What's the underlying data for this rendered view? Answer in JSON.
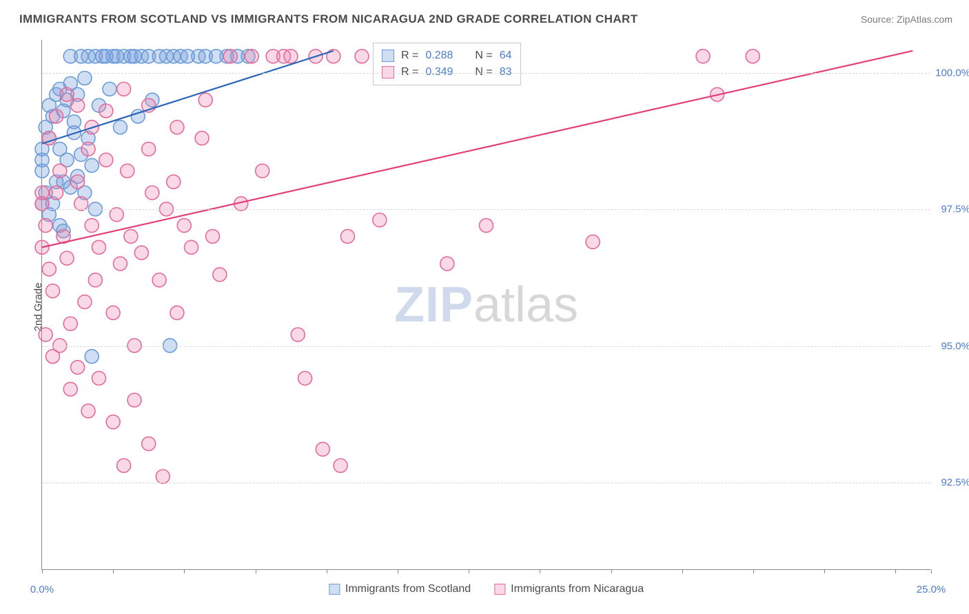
{
  "title": "IMMIGRANTS FROM SCOTLAND VS IMMIGRANTS FROM NICARAGUA 2ND GRADE CORRELATION CHART",
  "source_label": "Source: ",
  "source_value": "ZipAtlas.com",
  "y_axis_label": "2nd Grade",
  "watermark_part1": "ZIP",
  "watermark_part2": "atlas",
  "chart": {
    "type": "scatter",
    "background_color": "#ffffff",
    "grid_color": "#d8d8d8",
    "axis_color": "#888888",
    "xlim": [
      0,
      25
    ],
    "ylim": [
      90.9,
      100.6
    ],
    "x_tick_positions": [
      0,
      2.0,
      4.0,
      6.0,
      8.0,
      10.0,
      12.0,
      14.0,
      16.0,
      18.0,
      20.0,
      22.0,
      24.0,
      25.0
    ],
    "x_tick_labels": {
      "0": "0.0%",
      "25": "25.0%"
    },
    "y_grid_positions": [
      92.5,
      95.0,
      97.5,
      100.0
    ],
    "y_tick_labels": [
      "92.5%",
      "95.0%",
      "97.5%",
      "100.0%"
    ],
    "marker_radius": 10,
    "marker_stroke_width": 1.6,
    "trend_line_width": 2.2,
    "title_fontsize": 17,
    "label_fontsize": 15,
    "series": [
      {
        "key": "scotland",
        "name": "Immigrants from Scotland",
        "fill_color": "rgba(120,160,220,0.35)",
        "stroke_color": "#6a9bd8",
        "line_color": "#2a64b8",
        "R": "0.288",
        "N": "64",
        "trend": {
          "x1": 0.0,
          "y1": 98.7,
          "x2": 8.2,
          "y2": 100.4
        },
        "points": [
          [
            0.0,
            98.6
          ],
          [
            0.0,
            98.4
          ],
          [
            0.0,
            98.2
          ],
          [
            0.1,
            97.8
          ],
          [
            0.1,
            99.0
          ],
          [
            0.2,
            98.8
          ],
          [
            0.2,
            99.4
          ],
          [
            0.3,
            99.2
          ],
          [
            0.4,
            99.6
          ],
          [
            0.5,
            98.6
          ],
          [
            0.5,
            99.7
          ],
          [
            0.6,
            98.0
          ],
          [
            0.6,
            99.3
          ],
          [
            0.7,
            99.5
          ],
          [
            0.8,
            99.8
          ],
          [
            0.8,
            100.3
          ],
          [
            0.9,
            99.1
          ],
          [
            1.0,
            99.6
          ],
          [
            1.1,
            100.3
          ],
          [
            1.2,
            99.9
          ],
          [
            1.3,
            100.3
          ],
          [
            1.4,
            98.3
          ],
          [
            1.5,
            100.3
          ],
          [
            1.6,
            99.4
          ],
          [
            1.7,
            100.3
          ],
          [
            1.8,
            100.3
          ],
          [
            1.9,
            99.7
          ],
          [
            2.0,
            100.3
          ],
          [
            2.1,
            100.3
          ],
          [
            2.2,
            99.0
          ],
          [
            2.3,
            100.3
          ],
          [
            2.5,
            100.3
          ],
          [
            2.6,
            100.3
          ],
          [
            2.7,
            99.2
          ],
          [
            2.8,
            100.3
          ],
          [
            3.0,
            100.3
          ],
          [
            3.1,
            99.5
          ],
          [
            3.3,
            100.3
          ],
          [
            3.5,
            100.3
          ],
          [
            3.7,
            100.3
          ],
          [
            3.9,
            100.3
          ],
          [
            4.1,
            100.3
          ],
          [
            4.4,
            100.3
          ],
          [
            4.6,
            100.3
          ],
          [
            4.9,
            100.3
          ],
          [
            5.2,
            100.3
          ],
          [
            5.5,
            100.3
          ],
          [
            5.8,
            100.3
          ],
          [
            1.4,
            94.8
          ],
          [
            1.5,
            97.5
          ],
          [
            0.3,
            97.6
          ],
          [
            0.4,
            98.0
          ],
          [
            0.2,
            97.4
          ],
          [
            0.5,
            97.2
          ],
          [
            0.7,
            98.4
          ],
          [
            0.9,
            98.9
          ],
          [
            1.1,
            98.5
          ],
          [
            1.3,
            98.8
          ],
          [
            0.6,
            97.1
          ],
          [
            0.0,
            97.6
          ],
          [
            0.8,
            97.9
          ],
          [
            1.0,
            98.1
          ],
          [
            3.6,
            95.0
          ],
          [
            1.2,
            97.8
          ]
        ]
      },
      {
        "key": "nicaragua",
        "name": "Immigrants from Nicaragua",
        "fill_color": "rgba(235,130,170,0.30)",
        "stroke_color": "#e46a9a",
        "line_color": "#e43d78",
        "R": "0.349",
        "N": "83",
        "trend": {
          "x1": 0.0,
          "y1": 96.8,
          "x2": 24.5,
          "y2": 100.4
        },
        "points": [
          [
            0.0,
            97.6
          ],
          [
            0.0,
            96.8
          ],
          [
            0.1,
            97.2
          ],
          [
            0.2,
            96.4
          ],
          [
            0.3,
            96.0
          ],
          [
            0.4,
            97.8
          ],
          [
            0.5,
            98.2
          ],
          [
            0.6,
            97.0
          ],
          [
            0.7,
            96.6
          ],
          [
            0.8,
            95.4
          ],
          [
            1.0,
            98.0
          ],
          [
            1.1,
            97.6
          ],
          [
            1.2,
            95.8
          ],
          [
            1.3,
            98.6
          ],
          [
            1.4,
            97.2
          ],
          [
            1.5,
            96.2
          ],
          [
            1.6,
            96.8
          ],
          [
            1.8,
            98.4
          ],
          [
            2.0,
            95.6
          ],
          [
            2.1,
            97.4
          ],
          [
            2.2,
            96.5
          ],
          [
            2.4,
            98.2
          ],
          [
            2.5,
            97.0
          ],
          [
            2.6,
            95.0
          ],
          [
            2.8,
            96.7
          ],
          [
            3.0,
            98.6
          ],
          [
            3.1,
            97.8
          ],
          [
            3.3,
            96.2
          ],
          [
            3.5,
            97.5
          ],
          [
            3.7,
            98.0
          ],
          [
            3.8,
            95.6
          ],
          [
            4.0,
            97.2
          ],
          [
            4.2,
            96.8
          ],
          [
            4.5,
            98.8
          ],
          [
            4.8,
            97.0
          ],
          [
            5.0,
            96.3
          ],
          [
            5.3,
            100.3
          ],
          [
            5.6,
            97.6
          ],
          [
            5.9,
            100.3
          ],
          [
            6.2,
            98.2
          ],
          [
            6.5,
            100.3
          ],
          [
            6.8,
            100.3
          ],
          [
            7.2,
            95.2
          ],
          [
            7.0,
            100.3
          ],
          [
            7.4,
            94.4
          ],
          [
            7.7,
            100.3
          ],
          [
            7.9,
            93.1
          ],
          [
            8.2,
            100.3
          ],
          [
            8.6,
            97.0
          ],
          [
            8.4,
            92.8
          ],
          [
            9.0,
            100.3
          ],
          [
            9.5,
            97.3
          ],
          [
            10.2,
            100.3
          ],
          [
            11.4,
            96.5
          ],
          [
            11.8,
            100.3
          ],
          [
            12.5,
            97.2
          ],
          [
            15.5,
            96.9
          ],
          [
            18.6,
            100.3
          ],
          [
            19.0,
            99.6
          ],
          [
            20.0,
            100.3
          ],
          [
            0.1,
            95.2
          ],
          [
            0.3,
            94.8
          ],
          [
            0.5,
            95.0
          ],
          [
            0.8,
            94.2
          ],
          [
            1.0,
            94.6
          ],
          [
            1.3,
            93.8
          ],
          [
            1.6,
            94.4
          ],
          [
            2.0,
            93.6
          ],
          [
            2.3,
            92.8
          ],
          [
            2.6,
            94.0
          ],
          [
            3.0,
            93.2
          ],
          [
            3.4,
            92.6
          ],
          [
            0.2,
            98.8
          ],
          [
            0.4,
            99.2
          ],
          [
            0.7,
            99.6
          ],
          [
            1.0,
            99.4
          ],
          [
            1.4,
            99.0
          ],
          [
            1.8,
            99.3
          ],
          [
            2.3,
            99.7
          ],
          [
            3.0,
            99.4
          ],
          [
            3.8,
            99.0
          ],
          [
            4.6,
            99.5
          ],
          [
            0.0,
            97.8
          ]
        ]
      }
    ]
  },
  "legend_top": {
    "r_label": "R =",
    "n_label": "N ="
  }
}
